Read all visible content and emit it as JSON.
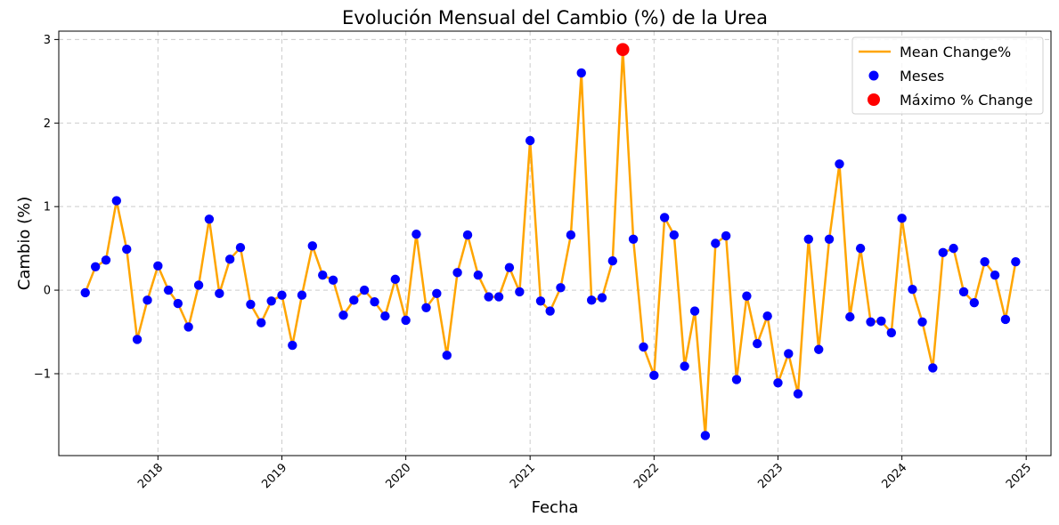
{
  "chart_data": {
    "type": "line",
    "title": "Evolución Mensual del Cambio (%) de la Urea",
    "xlabel": "Fecha",
    "ylabel": "Cambio (%)",
    "xlim": [
      "2017-03-15",
      "2025-03-15"
    ],
    "ylim": [
      -1.98,
      3.1
    ],
    "x_ticks": [
      "2018",
      "2019",
      "2020",
      "2021",
      "2022",
      "2023",
      "2024",
      "2025"
    ],
    "y_ticks": [
      {
        "value": -1,
        "label": "−1"
      },
      {
        "value": 0,
        "label": "0"
      },
      {
        "value": 1,
        "label": "1"
      },
      {
        "value": 2,
        "label": "2"
      },
      {
        "value": 3,
        "label": "3"
      }
    ],
    "grid": true,
    "legend_position": "top-right",
    "colors": {
      "line": "#ffa500",
      "points": "#0000ff",
      "max_point": "#ff0000",
      "grid": "#cccccc"
    },
    "legend": [
      "Mean Change%",
      "Meses",
      "Máximo % Change"
    ],
    "series": [
      {
        "name": "Mean Change%",
        "x": [
          "2017-06",
          "2017-07",
          "2017-08",
          "2017-09",
          "2017-10",
          "2017-11",
          "2017-12",
          "2018-01",
          "2018-02",
          "2018-03",
          "2018-04",
          "2018-05",
          "2018-06",
          "2018-07",
          "2018-08",
          "2018-09",
          "2018-10",
          "2018-11",
          "2018-12",
          "2019-01",
          "2019-02",
          "2019-03",
          "2019-04",
          "2019-05",
          "2019-06",
          "2019-07",
          "2019-08",
          "2019-09",
          "2019-10",
          "2019-11",
          "2019-12",
          "2020-01",
          "2020-02",
          "2020-03",
          "2020-04",
          "2020-05",
          "2020-06",
          "2020-07",
          "2020-08",
          "2020-09",
          "2020-10",
          "2020-11",
          "2020-12",
          "2021-01",
          "2021-02",
          "2021-03",
          "2021-04",
          "2021-05",
          "2021-06",
          "2021-07",
          "2021-08",
          "2021-09",
          "2021-10",
          "2021-11",
          "2021-12",
          "2022-01",
          "2022-02",
          "2022-03",
          "2022-04",
          "2022-05",
          "2022-06",
          "2022-07",
          "2022-08",
          "2022-09",
          "2022-10",
          "2022-11",
          "2022-12",
          "2023-01",
          "2023-02",
          "2023-03",
          "2023-04",
          "2023-05",
          "2023-06",
          "2023-07",
          "2023-08",
          "2023-09",
          "2023-10",
          "2023-11",
          "2023-12",
          "2024-01",
          "2024-02",
          "2024-03",
          "2024-04",
          "2024-05",
          "2024-06",
          "2024-07",
          "2024-08",
          "2024-09",
          "2024-10",
          "2024-11",
          "2024-12"
        ],
        "values": [
          -0.03,
          0.28,
          0.36,
          1.07,
          0.49,
          -0.59,
          -0.12,
          0.29,
          0.0,
          -0.16,
          -0.44,
          0.06,
          0.85,
          -0.04,
          0.37,
          0.51,
          -0.17,
          -0.39,
          -0.13,
          -0.06,
          -0.66,
          -0.06,
          0.53,
          0.18,
          0.12,
          -0.3,
          -0.12,
          0.0,
          -0.14,
          -0.31,
          0.13,
          -0.36,
          0.67,
          -0.21,
          -0.04,
          -0.78,
          0.21,
          0.66,
          0.18,
          -0.08,
          -0.08,
          0.27,
          -0.02,
          1.79,
          -0.13,
          -0.25,
          0.03,
          0.66,
          2.6,
          -0.12,
          -0.09,
          0.35,
          2.88,
          0.61,
          -0.68,
          -1.02,
          0.87,
          0.66,
          -0.91,
          -0.25,
          -1.74,
          0.56,
          0.65,
          -1.07,
          -0.07,
          -0.64,
          -0.31,
          -1.11,
          -0.76,
          -1.24,
          0.61,
          -0.71,
          0.61,
          1.51,
          -0.32,
          0.5,
          -0.38,
          -0.37,
          -0.51,
          0.86,
          0.01,
          -0.38,
          -0.93,
          0.45,
          0.5,
          -0.02,
          -0.15,
          0.34,
          0.18,
          -0.35,
          0.34
        ]
      }
    ],
    "max_point": {
      "x": "2021-10",
      "value": 2.88
    }
  }
}
